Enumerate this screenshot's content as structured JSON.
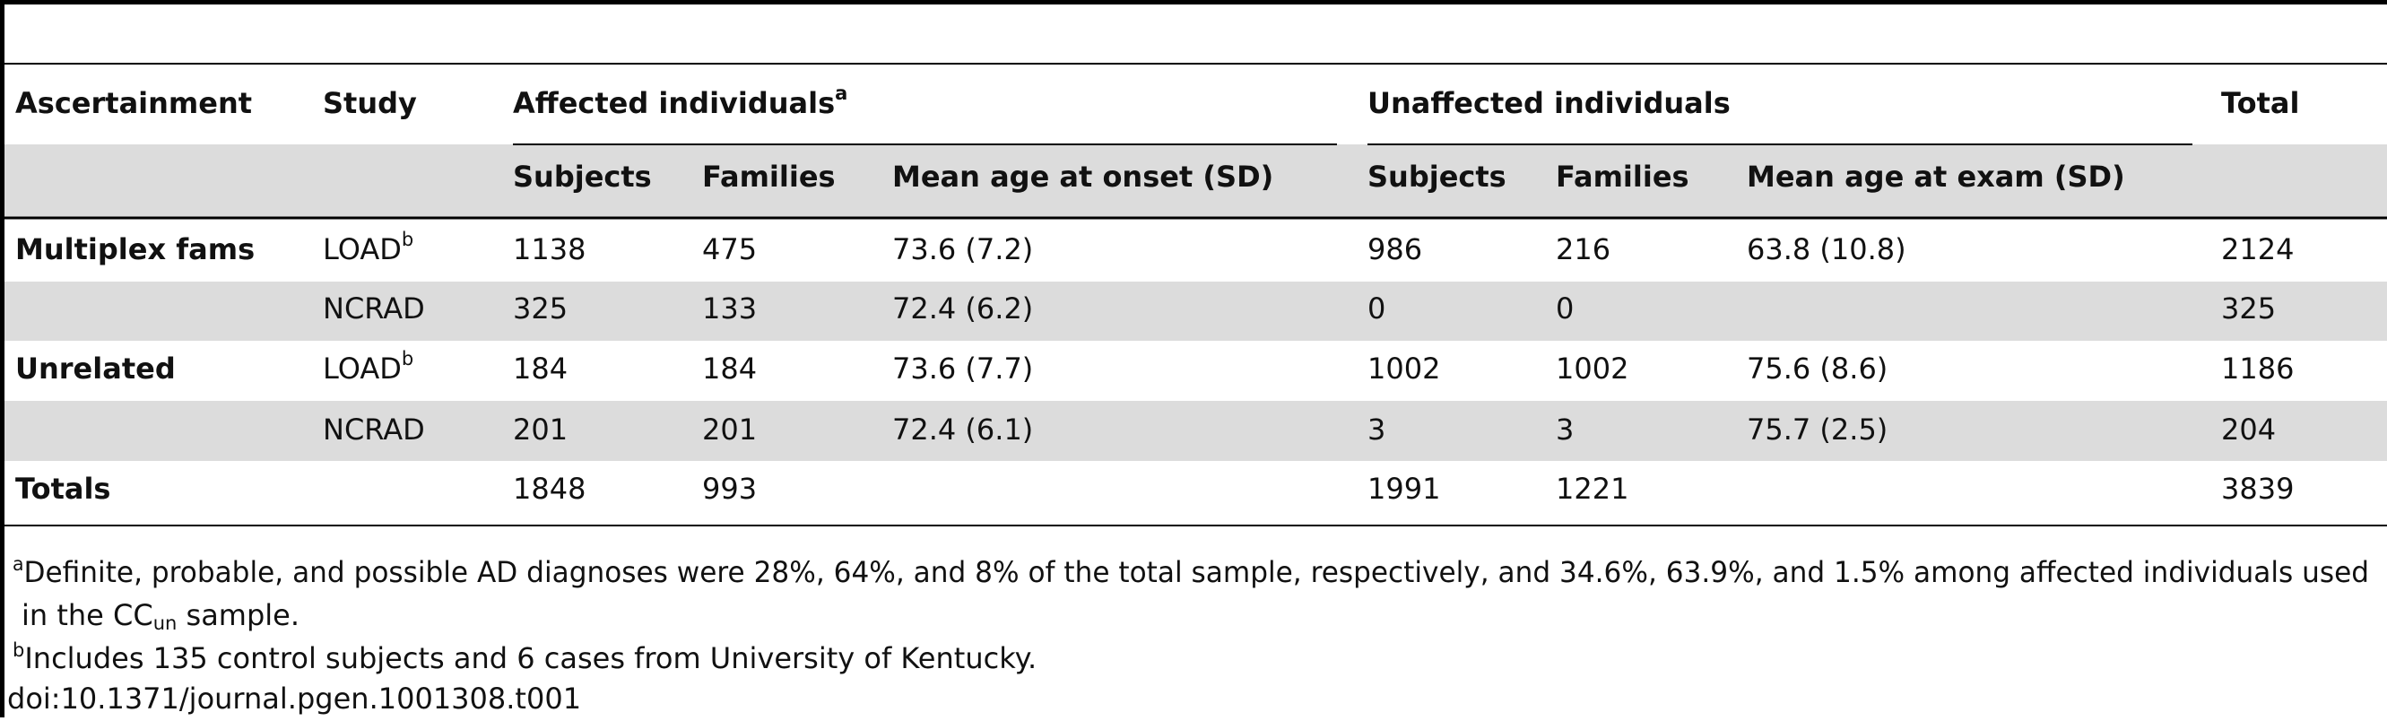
{
  "header": {
    "ascertainment": "Ascertainment",
    "study": "Study",
    "affected": "Affected individuals",
    "affected_note": "a",
    "unaffected": "Unaffected individuals",
    "total": "Total",
    "subheaders": [
      "Subjects",
      "Families",
      "Mean age at onset (SD)",
      "Subjects",
      "Families",
      "Mean age at exam (SD)"
    ]
  },
  "rows": [
    [
      "Multiplex fams",
      {
        "text": "LOAD",
        "note": "b"
      },
      1138,
      475,
      "73.6 (7.2)",
      986,
      216,
      "63.8 (10.8)",
      2124
    ],
    [
      null,
      {
        "text": "NCRAD"
      },
      325,
      133,
      "72.4 (6.2)",
      0,
      0,
      null,
      325
    ],
    [
      "Unrelated",
      {
        "text": "LOAD",
        "note": "b"
      },
      184,
      184,
      "73.6 (7.7)",
      1002,
      1002,
      "75.6 (8.6)",
      1186
    ],
    [
      null,
      {
        "text": "NCRAD"
      },
      201,
      201,
      "72.4 (6.1)",
      3,
      3,
      "75.7 (2.5)",
      204
    ],
    [
      "Totals",
      null,
      1848,
      993,
      null,
      1991,
      1221,
      null,
      3839
    ]
  ],
  "footnotes": [
    {
      "mark": "a",
      "lines": [
        "Definite, probable, and possible AD diagnoses were 28%, 64%, and 8% of the total sample, respectively, and 34.6%, 63.9%, and 1.5% among affected individuals used",
        "in the CC"
      ],
      "sub": "un",
      "tail": " sample."
    },
    {
      "mark": "b",
      "lines": [
        "Includes 135 control subjects and 6 cases from University of Kentucky."
      ]
    }
  ],
  "doi": "doi:10.1371/journal.pgen.1001308.t001"
}
